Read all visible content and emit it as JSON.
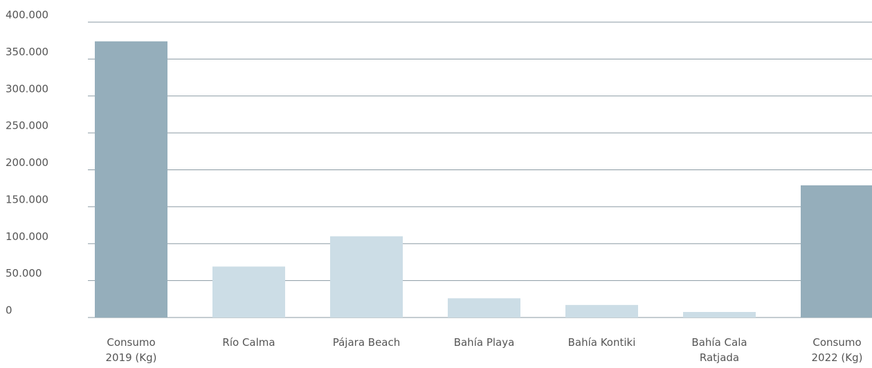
{
  "chart_data": {
    "type": "bar",
    "categories": [
      "Consumo\n2019 (Kg)",
      "Río Calma",
      "Pájara Beach",
      "Bahía Playa",
      "Bahía Kontiki",
      "Bahía Cala\nRatjada",
      "Consumo\n2022 (Kg)"
    ],
    "values": [
      374000,
      69000,
      110000,
      26000,
      17000,
      7500,
      179000
    ],
    "colors": [
      "#95aebb",
      "#ccdde6",
      "#ccdde6",
      "#ccdde6",
      "#ccdde6",
      "#ccdde6",
      "#95aebb"
    ],
    "ylim": [
      0,
      400000
    ],
    "yticks": [
      0,
      {
        "value": 50000,
        "label": "50.000"
      },
      {
        "value": 100000,
        "label": "100.000"
      },
      {
        "value": 150000,
        "label": "150.000"
      },
      {
        "value": 200000,
        "label": "200.000"
      },
      {
        "value": 250000,
        "label": "250.000"
      },
      {
        "value": 300000,
        "label": "300.000"
      },
      {
        "value": 350000,
        "label": "350.000"
      },
      {
        "value": 400000,
        "label": "400.000"
      }
    ],
    "grid": true
  }
}
